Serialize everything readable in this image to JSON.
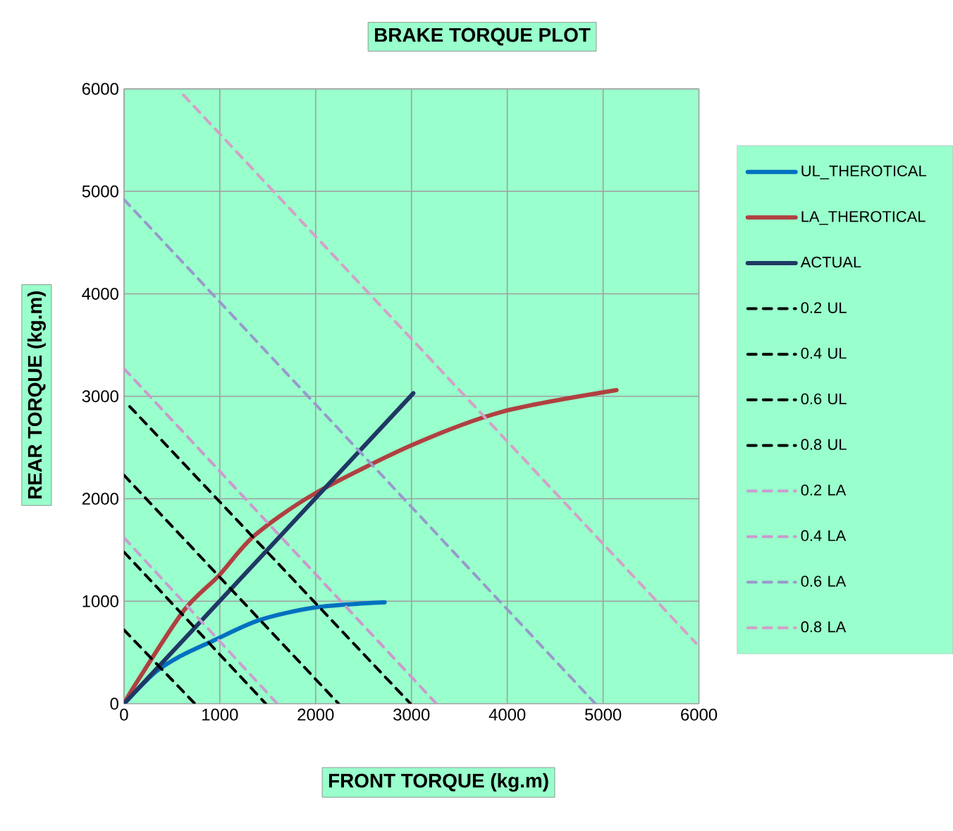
{
  "chart_data": {
    "type": "line",
    "title": "BRAKE TORQUE PLOT",
    "xlabel": "FRONT TORQUE (kg.m)",
    "ylabel": "REAR TORQUE (kg.m)",
    "xlim": [
      0,
      6000
    ],
    "ylim": [
      0,
      6000
    ],
    "xticks": [
      0,
      1000,
      2000,
      3000,
      4000,
      5000,
      6000
    ],
    "yticks": [
      0,
      1000,
      2000,
      3000,
      4000,
      5000,
      6000
    ],
    "grid": true,
    "legend": "right",
    "marker": "none",
    "series": [
      {
        "name": "UL_THEROTICAL",
        "color": "#0070c0",
        "line_style": "solid",
        "x": [
          0,
          330,
          600,
          920,
          1410,
          2000,
          2720
        ],
        "values": [
          0,
          310,
          470,
          610,
          815,
          940,
          990
        ]
      },
      {
        "name": "LA_THEROTICAL",
        "color": "#b04040",
        "line_style": "solid",
        "x": [
          0,
          140,
          625,
          990,
          1360,
          1990,
          3020,
          3950,
          5140
        ],
        "values": [
          0,
          220,
          910,
          1250,
          1640,
          2050,
          2530,
          2850,
          3060
        ]
      },
      {
        "name": "ACTUAL",
        "color": "#1f3864",
        "line_style": "solid",
        "x": [
          0,
          3020
        ],
        "values": [
          0,
          3030
        ]
      },
      {
        "name": "0.2 UL",
        "color": "#000000",
        "line_style": "dashed",
        "x": [
          0,
          740
        ],
        "values": [
          720,
          0
        ]
      },
      {
        "name": "0.4 UL",
        "color": "#000000",
        "line_style": "dashed",
        "x": [
          0,
          1480
        ],
        "values": [
          1480,
          0
        ]
      },
      {
        "name": "0.6 UL",
        "color": "#000000",
        "line_style": "dashed",
        "x": [
          0,
          2240
        ],
        "values": [
          2230,
          0
        ]
      },
      {
        "name": "0.8 UL",
        "color": "#000000",
        "line_style": "dashed",
        "x": [
          60,
          2990
        ],
        "values": [
          2900,
          0
        ]
      },
      {
        "name": "0.2 LA",
        "color": "#c8a0d0",
        "line_style": "dashed",
        "x": [
          0,
          1600
        ],
        "values": [
          1620,
          0
        ]
      },
      {
        "name": "0.4 LA",
        "color": "#cc99cc",
        "line_style": "dashed",
        "x": [
          0,
          3260
        ],
        "values": [
          3270,
          0
        ]
      },
      {
        "name": "0.6 LA",
        "color": "#9999cc",
        "line_style": "dashed",
        "x": [
          0,
          4920
        ],
        "values": [
          4920,
          0
        ]
      },
      {
        "name": "0.8 LA",
        "color": "#d4a0c8",
        "line_style": "dashed",
        "x": [
          620,
          5970
        ],
        "values": [
          5940,
          590
        ]
      }
    ]
  }
}
